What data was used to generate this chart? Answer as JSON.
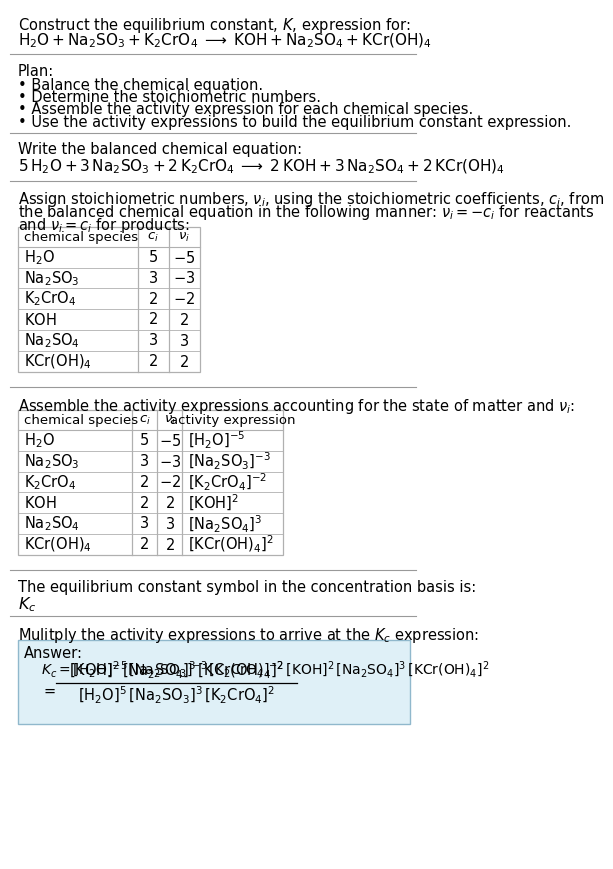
{
  "title_line1": "Construct the equilibrium constant, $K$, expression for:",
  "title_chem": "$\\mathrm{H_2O + Na_2SO_3 + K_2CrO_4 \\;\\longrightarrow\\; KOH + Na_2SO_4 + KCr(OH)_4}$",
  "plan_header": "Plan:",
  "plan_items": [
    "• Balance the chemical equation.",
    "• Determine the stoichiometric numbers.",
    "• Assemble the activity expression for each chemical species.",
    "• Use the activity expressions to build the equilibrium constant expression."
  ],
  "balanced_header": "Write the balanced chemical equation:",
  "balanced_chem": "$5\\,\\mathrm{H_2O} + 3\\,\\mathrm{Na_2SO_3} + 2\\,\\mathrm{K_2CrO_4} \\;\\longrightarrow\\; 2\\,\\mathrm{KOH} + 3\\,\\mathrm{Na_2SO_4} + 2\\,\\mathrm{KCr(OH)_4}$",
  "stoich_text1": "Assign stoichiometric numbers, $\\nu_i$, using the stoichiometric coefficients, $c_i$, from",
  "stoich_text2": "the balanced chemical equation in the following manner: $\\nu_i = -c_i$ for reactants",
  "stoich_text3": "and $\\nu_i = c_i$ for products:",
  "table1_col_species": "chemical species",
  "table1_col_ci": "$c_i$",
  "table1_col_vi": "$\\nu_i$",
  "table1_rows": [
    [
      "$\\mathrm{H_2O}$",
      "5",
      "$-5$"
    ],
    [
      "$\\mathrm{Na_2SO_3}$",
      "3",
      "$-3$"
    ],
    [
      "$\\mathrm{K_2CrO_4}$",
      "2",
      "$-2$"
    ],
    [
      "$\\mathrm{KOH}$",
      "2",
      "$2$"
    ],
    [
      "$\\mathrm{Na_2SO_4}$",
      "3",
      "$3$"
    ],
    [
      "$\\mathrm{KCr(OH)_4}$",
      "2",
      "$2$"
    ]
  ],
  "activity_text": "Assemble the activity expressions accounting for the state of matter and $\\nu_i$:",
  "table2_col_species": "chemical species",
  "table2_col_ci": "$c_i$",
  "table2_col_vi": "$\\nu_i$",
  "table2_col_act": "activity expression",
  "table2_rows": [
    [
      "$\\mathrm{H_2O}$",
      "5",
      "$-5$",
      "$[\\mathrm{H_2O}]^{-5}$"
    ],
    [
      "$\\mathrm{Na_2SO_3}$",
      "3",
      "$-3$",
      "$[\\mathrm{Na_2SO_3}]^{-3}$"
    ],
    [
      "$\\mathrm{K_2CrO_4}$",
      "2",
      "$-2$",
      "$[\\mathrm{K_2CrO_4}]^{-2}$"
    ],
    [
      "$\\mathrm{KOH}$",
      "2",
      "$2$",
      "$[\\mathrm{KOH}]^{2}$"
    ],
    [
      "$\\mathrm{Na_2SO_4}$",
      "3",
      "$3$",
      "$[\\mathrm{Na_2SO_4}]^{3}$"
    ],
    [
      "$\\mathrm{KCr(OH)_4}$",
      "2",
      "$2$",
      "$[\\mathrm{KCr(OH)_4}]^{2}$"
    ]
  ],
  "kc_text": "The equilibrium constant symbol in the concentration basis is:",
  "kc_symbol": "$K_c$",
  "multiply_text": "Mulitply the activity expressions to arrive at the $K_c$ expression:",
  "answer_label": "Answer:",
  "answer_eq1": "$K_c = [\\mathrm{H_2O}]^{-5}\\,[\\mathrm{Na_2SO_3}]^{-3}\\,[\\mathrm{K_2CrO_4}]^{-2}\\,[\\mathrm{KOH}]^{2}\\,[\\mathrm{Na_2SO_4}]^{3}\\,[\\mathrm{KCr(OH)_4}]^{2}$",
  "answer_eq2_num": "$[\\mathrm{KOH}]^{2}\\,[\\mathrm{Na_2SO_4}]^{3}\\,[\\mathrm{KCr(OH)_4}]^{2}$",
  "answer_eq2_den": "$[\\mathrm{H_2O}]^{5}\\,[\\mathrm{Na_2SO_3}]^{3}\\,[\\mathrm{K_2CrO_4}]^{2}$",
  "bg_color": "#ffffff",
  "table_border": "#b0b0b0",
  "answer_box_bg": "#dff0f7",
  "answer_box_border": "#90b8cc",
  "text_color": "#000000",
  "fs": 10.5,
  "fs_small": 9.5,
  "fs_math": 10.5
}
